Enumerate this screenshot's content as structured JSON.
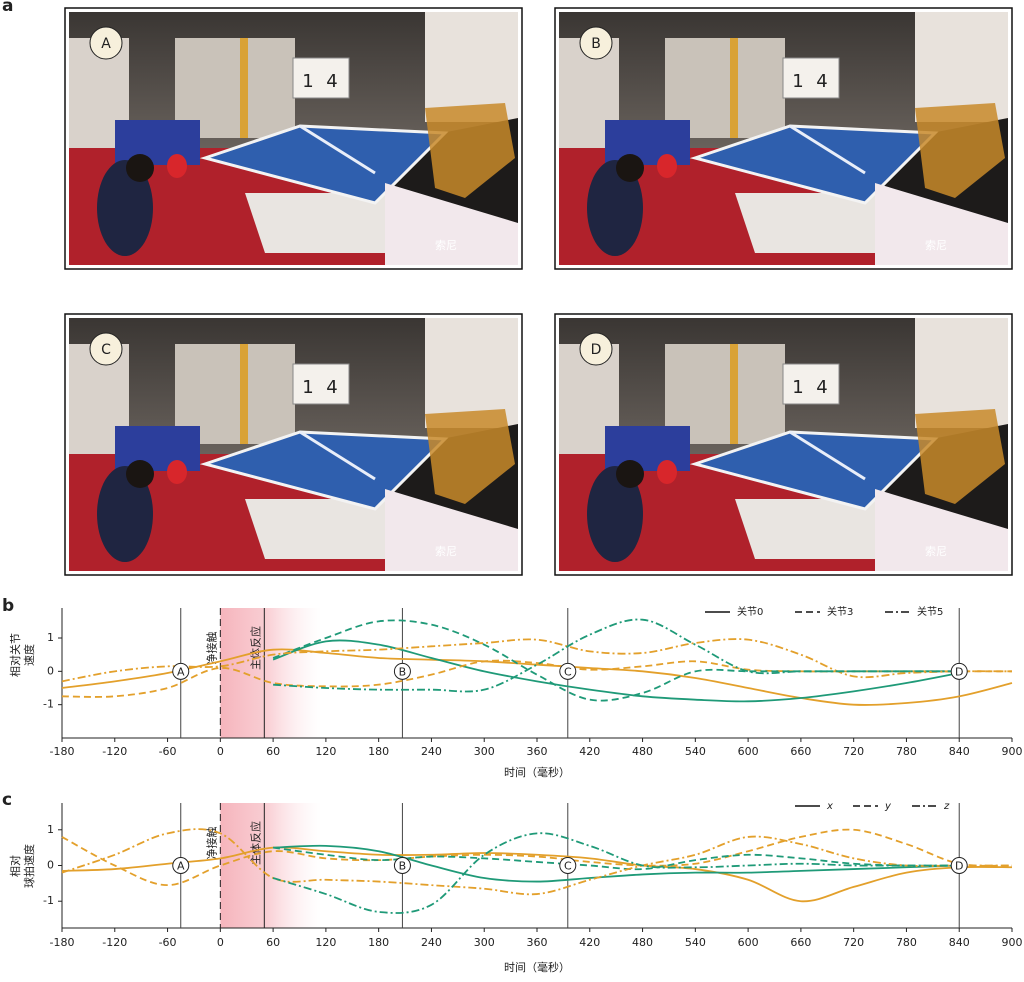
{
  "panels": [
    "a",
    "b",
    "c"
  ],
  "photos": [
    {
      "label": "A",
      "banner": "索尼",
      "score": [
        "1",
        "4"
      ]
    },
    {
      "label": "B",
      "banner": "索尼",
      "score": [
        "1",
        "4"
      ]
    },
    {
      "label": "C",
      "banner": "索尼",
      "score": [
        "1",
        "4"
      ]
    },
    {
      "label": "D",
      "banner": "索尼",
      "score": [
        "1",
        "4"
      ]
    }
  ],
  "chart_data": [
    {
      "type": "line",
      "ylabel": [
        "相对关节",
        "速度"
      ],
      "xlabel": "时间（毫秒）",
      "x": [
        -180,
        -120,
        -60,
        0,
        60,
        120,
        180,
        240,
        300,
        360,
        420,
        480,
        540,
        600,
        660,
        720,
        780,
        840,
        900
      ],
      "xlim": [
        -180,
        900
      ],
      "xticks": [
        -180,
        -120,
        -60,
        0,
        60,
        120,
        180,
        240,
        300,
        360,
        420,
        480,
        540,
        600,
        660,
        720,
        780,
        840,
        900
      ],
      "ylim": [
        -2,
        1.9
      ],
      "yticks": [
        1,
        0,
        -1
      ],
      "legend": [
        {
          "label": "关节0",
          "dash": "solid"
        },
        {
          "label": "关节3",
          "dash": "dashed"
        },
        {
          "label": "关节5",
          "dash": "dashdot"
        }
      ],
      "events": [
        {
          "x": -45,
          "label": "A"
        },
        {
          "x": 207,
          "label": "B"
        },
        {
          "x": 395,
          "label": "C"
        },
        {
          "x": 840,
          "label": "D"
        }
      ],
      "annotations": [
        {
          "x": 0,
          "label": "净接触",
          "dash": "dashed"
        },
        {
          "x": 50,
          "label": "主体反应",
          "dash": "solid"
        }
      ],
      "series": [
        {
          "color": "#e3a02b",
          "dash": "solid",
          "values": [
            -0.5,
            -0.3,
            -0.05,
            0.3,
            0.65,
            0.55,
            0.4,
            0.35,
            0.3,
            0.2,
            0.1,
            0.0,
            -0.2,
            -0.5,
            -0.8,
            -1.0,
            -0.95,
            -0.75,
            -0.35
          ]
        },
        {
          "color": "#1f9a78",
          "dash": "solid",
          "values": [
            null,
            null,
            null,
            null,
            0.35,
            0.9,
            0.8,
            0.4,
            0.0,
            -0.3,
            -0.55,
            -0.75,
            -0.85,
            -0.9,
            -0.8,
            -0.6,
            -0.35,
            -0.05,
            null
          ]
        },
        {
          "color": "#e3a02b",
          "dash": "dashed",
          "values": [
            -0.75,
            -0.75,
            -0.5,
            0.1,
            -0.35,
            -0.45,
            -0.4,
            -0.1,
            0.3,
            0.25,
            0.05,
            0.15,
            0.3,
            0.05,
            0.0,
            0.0,
            0.0,
            0.0,
            0.0
          ]
        },
        {
          "color": "#1f9a78",
          "dash": "dashed",
          "values": [
            null,
            null,
            null,
            null,
            0.4,
            1.0,
            1.5,
            1.4,
            0.8,
            -0.1,
            -0.85,
            -0.65,
            0.0,
            0.0,
            0.0,
            0.0,
            0.0,
            0.0,
            null
          ]
        },
        {
          "color": "#e3a02b",
          "dash": "dashdot",
          "values": [
            -0.3,
            0.0,
            0.15,
            0.15,
            0.5,
            0.6,
            0.65,
            0.75,
            0.85,
            0.95,
            0.6,
            0.55,
            0.85,
            0.95,
            0.5,
            -0.15,
            -0.05,
            0.0,
            0.0
          ]
        },
        {
          "color": "#1f9a78",
          "dash": "dashdot",
          "values": [
            null,
            null,
            null,
            null,
            -0.4,
            -0.5,
            -0.55,
            -0.55,
            -0.55,
            0.2,
            1.1,
            1.55,
            0.8,
            0.0,
            0.0,
            0.0,
            0.0,
            0.0,
            null
          ]
        }
      ]
    },
    {
      "type": "line",
      "ylabel": [
        "相对",
        "球拍速度"
      ],
      "xlabel": "时间（毫秒）",
      "x": [
        -180,
        -120,
        -60,
        0,
        60,
        120,
        180,
        240,
        300,
        360,
        420,
        480,
        540,
        600,
        660,
        720,
        780,
        840,
        900
      ],
      "xlim": [
        -180,
        900
      ],
      "xticks": [
        -180,
        -120,
        -60,
        0,
        60,
        120,
        180,
        240,
        300,
        360,
        420,
        480,
        540,
        600,
        660,
        720,
        780,
        840,
        900
      ],
      "ylim": [
        -1.75,
        1.75
      ],
      "yticks": [
        1,
        0,
        -1
      ],
      "legend": [
        {
          "label": "x",
          "dash": "solid"
        },
        {
          "label": "y",
          "dash": "dashed"
        },
        {
          "label": "z",
          "dash": "dashdot"
        }
      ],
      "events": [
        {
          "x": -45,
          "label": "A"
        },
        {
          "x": 207,
          "label": "B"
        },
        {
          "x": 395,
          "label": "C"
        },
        {
          "x": 840,
          "label": "D"
        }
      ],
      "annotations": [
        {
          "x": 0,
          "label": "净接触",
          "dash": "dashed"
        },
        {
          "x": 50,
          "label": "主体反应",
          "dash": "solid"
        }
      ],
      "series": [
        {
          "color": "#e3a02b",
          "dash": "solid",
          "values": [
            -0.15,
            -0.1,
            0.05,
            0.2,
            0.5,
            0.4,
            0.3,
            0.3,
            0.35,
            0.3,
            0.2,
            0.0,
            -0.1,
            -0.4,
            -1.0,
            -0.6,
            -0.2,
            -0.05,
            -0.05
          ]
        },
        {
          "color": "#1f9a78",
          "dash": "solid",
          "values": [
            null,
            null,
            null,
            null,
            0.5,
            0.55,
            0.4,
            0.0,
            -0.35,
            -0.45,
            -0.35,
            -0.25,
            -0.2,
            -0.2,
            -0.15,
            -0.1,
            -0.05,
            0.0,
            null
          ]
        },
        {
          "color": "#e3a02b",
          "dash": "dashed",
          "values": [
            0.8,
            0.0,
            -0.55,
            0.0,
            0.4,
            0.2,
            0.15,
            0.25,
            0.3,
            0.25,
            0.1,
            0.0,
            0.05,
            0.4,
            0.8,
            1.0,
            0.6,
            0.05,
            0.0
          ]
        },
        {
          "color": "#1f9a78",
          "dash": "dashed",
          "values": [
            null,
            null,
            null,
            null,
            0.5,
            0.3,
            0.15,
            0.25,
            0.2,
            0.1,
            0.0,
            -0.1,
            0.15,
            0.3,
            0.2,
            0.05,
            0.0,
            0.0,
            null
          ]
        },
        {
          "color": "#e3a02b",
          "dash": "dashdot",
          "values": [
            -0.2,
            0.3,
            0.9,
            0.9,
            -0.35,
            -0.4,
            -0.45,
            -0.55,
            -0.65,
            -0.8,
            -0.4,
            0.0,
            0.3,
            0.8,
            0.6,
            0.2,
            0.0,
            0.0,
            0.0
          ]
        },
        {
          "color": "#1f9a78",
          "dash": "dashdot",
          "values": [
            null,
            null,
            null,
            null,
            -0.35,
            -0.8,
            -1.3,
            -1.1,
            0.3,
            0.9,
            0.55,
            0.0,
            -0.05,
            0.0,
            0.05,
            0.0,
            0.0,
            0.0,
            null
          ]
        }
      ]
    }
  ]
}
